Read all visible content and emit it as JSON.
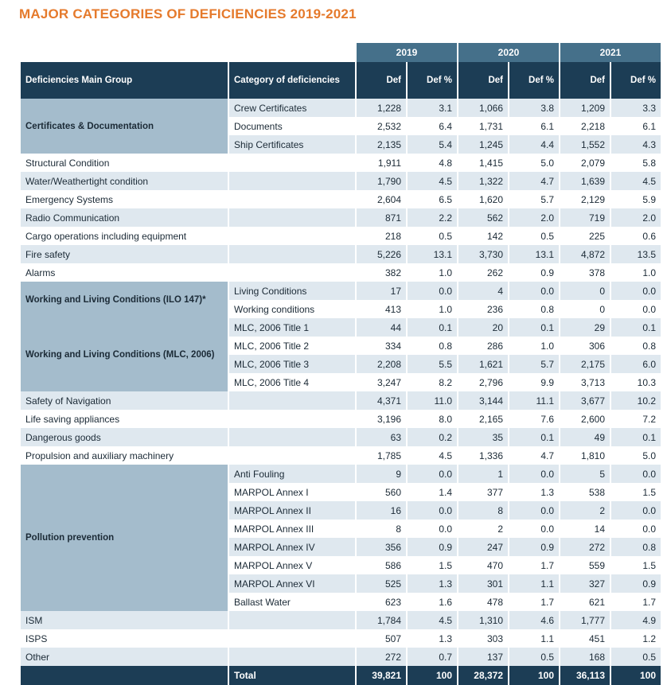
{
  "title": "MAJOR CATEGORIES OF DEFICIENCIES 2019-2021",
  "years": [
    "2019",
    "2020",
    "2021"
  ],
  "headers": {
    "group": "Deficiencies Main Group",
    "category": "Category of deficiencies",
    "def": "Def",
    "def_pct": "Def %"
  },
  "rows": [
    {
      "group": "Certificates & Documentation",
      "category": "Crew Certificates",
      "v": [
        "1,228",
        "3.1",
        "1,066",
        "3.8",
        "1,209",
        "3.3"
      ]
    },
    {
      "group": "",
      "category": "Documents",
      "v": [
        "2,532",
        "6.4",
        "1,731",
        "6.1",
        "2,218",
        "6.1"
      ]
    },
    {
      "group": "",
      "category": "Ship Certificates",
      "v": [
        "2,135",
        "5.4",
        "1,245",
        "4.4",
        "1,552",
        "4.3"
      ]
    },
    {
      "group": "Structural Condition",
      "category": "",
      "v": [
        "1,911",
        "4.8",
        "1,415",
        "5.0",
        "2,079",
        "5.8"
      ]
    },
    {
      "group": "Water/Weathertight condition",
      "category": "",
      "v": [
        "1,790",
        "4.5",
        "1,322",
        "4.7",
        "1,639",
        "4.5"
      ]
    },
    {
      "group": "Emergency Systems",
      "category": "",
      "v": [
        "2,604",
        "6.5",
        "1,620",
        "5.7",
        "2,129",
        "5.9"
      ]
    },
    {
      "group": "Radio Communication",
      "category": "",
      "v": [
        "871",
        "2.2",
        "562",
        "2.0",
        "719",
        "2.0"
      ]
    },
    {
      "group": "Cargo operations including equipment",
      "category": "",
      "v": [
        "218",
        "0.5",
        "142",
        "0.5",
        "225",
        "0.6"
      ]
    },
    {
      "group": "Fire safety",
      "category": "",
      "v": [
        "5,226",
        "13.1",
        "3,730",
        "13.1",
        "4,872",
        "13.5"
      ]
    },
    {
      "group": "Alarms",
      "category": "",
      "v": [
        "382",
        "1.0",
        "262",
        "0.9",
        "378",
        "1.0"
      ]
    },
    {
      "group": "Working and Living Conditions (ILO 147)*",
      "category": "Living Conditions",
      "v": [
        "17",
        "0.0",
        "4",
        "0.0",
        "0",
        "0.0"
      ]
    },
    {
      "group": "",
      "category": "Working conditions",
      "v": [
        "413",
        "1.0",
        "236",
        "0.8",
        "0",
        "0.0"
      ]
    },
    {
      "group": "Working and Living Conditions (MLC, 2006)",
      "category": "MLC, 2006  Title 1",
      "v": [
        "44",
        "0.1",
        "20",
        "0.1",
        "29",
        "0.1"
      ]
    },
    {
      "group": "",
      "category": "MLC, 2006  Title 2",
      "v": [
        "334",
        "0.8",
        "286",
        "1.0",
        "306",
        "0.8"
      ]
    },
    {
      "group": "",
      "category": "MLC, 2006  Title 3",
      "v": [
        "2,208",
        "5.5",
        "1,621",
        "5.7",
        "2,175",
        "6.0"
      ]
    },
    {
      "group": "",
      "category": "MLC, 2006  Title 4",
      "v": [
        "3,247",
        "8.2",
        "2,796",
        "9.9",
        "3,713",
        "10.3"
      ]
    },
    {
      "group": "Safety of Navigation",
      "category": "",
      "v": [
        "4,371",
        "11.0",
        "3,144",
        "11.1",
        "3,677",
        "10.2"
      ]
    },
    {
      "group": "Life saving appliances",
      "category": "",
      "v": [
        "3,196",
        "8.0",
        "2,165",
        "7.6",
        "2,600",
        "7.2"
      ]
    },
    {
      "group": "Dangerous goods",
      "category": "",
      "v": [
        "63",
        "0.2",
        "35",
        "0.1",
        "49",
        "0.1"
      ]
    },
    {
      "group": "Propulsion and auxiliary machinery",
      "category": "",
      "v": [
        "1,785",
        "4.5",
        "1,336",
        "4.7",
        "1,810",
        "5.0"
      ]
    },
    {
      "group": "Pollution prevention",
      "category": "Anti Fouling",
      "v": [
        "9",
        "0.0",
        "1",
        "0.0",
        "5",
        "0.0"
      ]
    },
    {
      "group": "",
      "category": "MARPOL Annex I",
      "v": [
        "560",
        "1.4",
        "377",
        "1.3",
        "538",
        "1.5"
      ]
    },
    {
      "group": "",
      "category": "MARPOL Annex II",
      "v": [
        "16",
        "0.0",
        "8",
        "0.0",
        "2",
        "0.0"
      ]
    },
    {
      "group": "",
      "category": "MARPOL Annex III",
      "v": [
        "8",
        "0.0",
        "2",
        "0.0",
        "14",
        "0.0"
      ]
    },
    {
      "group": "",
      "category": "MARPOL Annex IV",
      "v": [
        "356",
        "0.9",
        "247",
        "0.9",
        "272",
        "0.8"
      ]
    },
    {
      "group": "",
      "category": "MARPOL Annex V",
      "v": [
        "586",
        "1.5",
        "470",
        "1.7",
        "559",
        "1.5"
      ]
    },
    {
      "group": "",
      "category": "MARPOL Annex VI",
      "v": [
        "525",
        "1.3",
        "301",
        "1.1",
        "327",
        "0.9"
      ]
    },
    {
      "group": "",
      "category": "Ballast Water",
      "v": [
        "623",
        "1.6",
        "478",
        "1.7",
        "621",
        "1.7"
      ]
    },
    {
      "group": "ISM",
      "category": "",
      "v": [
        "1,784",
        "4.5",
        "1,310",
        "4.6",
        "1,777",
        "4.9"
      ]
    },
    {
      "group": "ISPS",
      "category": "",
      "v": [
        "507",
        "1.3",
        "303",
        "1.1",
        "451",
        "1.2"
      ]
    },
    {
      "group": "Other",
      "category": "",
      "v": [
        "272",
        "0.7",
        "137",
        "0.5",
        "168",
        "0.5"
      ]
    }
  ],
  "total": {
    "label": "Total",
    "v": [
      "39,821",
      "100",
      "28,372",
      "100",
      "36,113",
      "100"
    ]
  }
}
